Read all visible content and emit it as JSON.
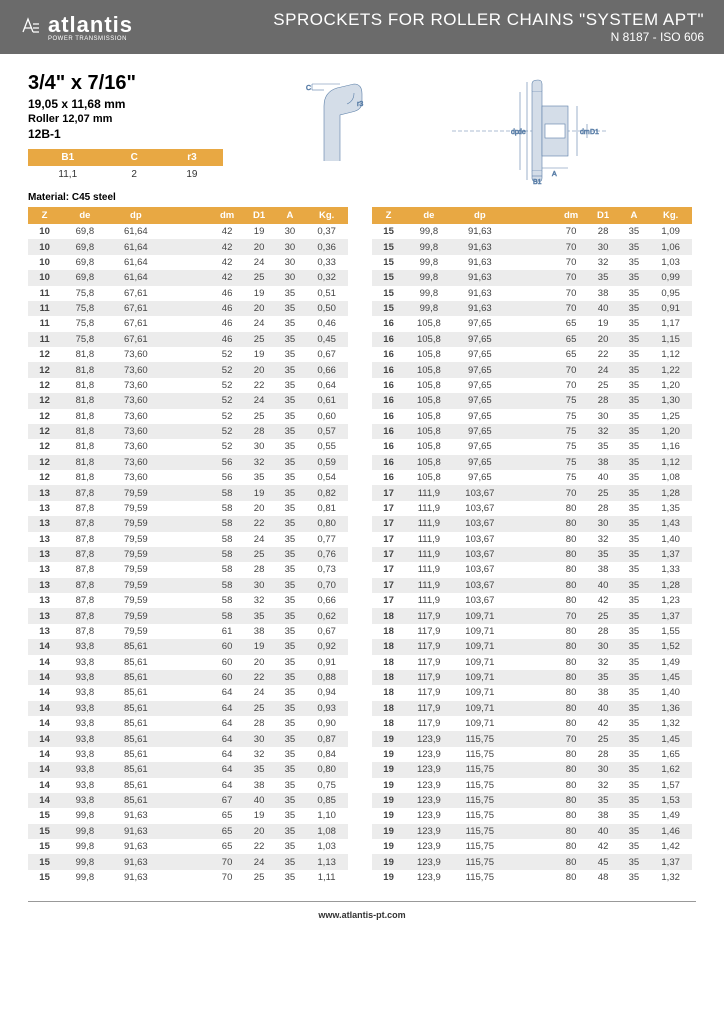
{
  "header": {
    "logo_text": "atlantis",
    "logo_sub": "POWER TRANSMISSION",
    "title": "SPROCKETS FOR ROLLER CHAINS \"SYSTEM APT\"",
    "subtitle": "N 8187 - ISO 606"
  },
  "spec": {
    "main": "3/4\" x 7/16\"",
    "sub": "19,05 x 11,68 mm",
    "roller": "Roller 12,07 mm",
    "code": "12B-1"
  },
  "small_table": {
    "headers": [
      "B1",
      "C",
      "r3"
    ],
    "row": [
      "11,1",
      "2",
      "19"
    ]
  },
  "material": "Material: C45 steel",
  "main_headers": [
    "Z",
    "de",
    "dp",
    "",
    "dm",
    "D1",
    "A",
    "Kg."
  ],
  "left_rows": [
    [
      "10",
      "69,8",
      "61,64",
      "",
      "42",
      "19",
      "30",
      "0,37"
    ],
    [
      "10",
      "69,8",
      "61,64",
      "",
      "42",
      "20",
      "30",
      "0,36"
    ],
    [
      "10",
      "69,8",
      "61,64",
      "",
      "42",
      "24",
      "30",
      "0,33"
    ],
    [
      "10",
      "69,8",
      "61,64",
      "",
      "42",
      "25",
      "30",
      "0,32"
    ],
    [
      "11",
      "75,8",
      "67,61",
      "",
      "46",
      "19",
      "35",
      "0,51"
    ],
    [
      "11",
      "75,8",
      "67,61",
      "",
      "46",
      "20",
      "35",
      "0,50"
    ],
    [
      "11",
      "75,8",
      "67,61",
      "",
      "46",
      "24",
      "35",
      "0,46"
    ],
    [
      "11",
      "75,8",
      "67,61",
      "",
      "46",
      "25",
      "35",
      "0,45"
    ],
    [
      "12",
      "81,8",
      "73,60",
      "",
      "52",
      "19",
      "35",
      "0,67"
    ],
    [
      "12",
      "81,8",
      "73,60",
      "",
      "52",
      "20",
      "35",
      "0,66"
    ],
    [
      "12",
      "81,8",
      "73,60",
      "",
      "52",
      "22",
      "35",
      "0,64"
    ],
    [
      "12",
      "81,8",
      "73,60",
      "",
      "52",
      "24",
      "35",
      "0,61"
    ],
    [
      "12",
      "81,8",
      "73,60",
      "",
      "52",
      "25",
      "35",
      "0,60"
    ],
    [
      "12",
      "81,8",
      "73,60",
      "",
      "52",
      "28",
      "35",
      "0,57"
    ],
    [
      "12",
      "81,8",
      "73,60",
      "",
      "52",
      "30",
      "35",
      "0,55"
    ],
    [
      "12",
      "81,8",
      "73,60",
      "",
      "56",
      "32",
      "35",
      "0,59"
    ],
    [
      "12",
      "81,8",
      "73,60",
      "",
      "56",
      "35",
      "35",
      "0,54"
    ],
    [
      "13",
      "87,8",
      "79,59",
      "",
      "58",
      "19",
      "35",
      "0,82"
    ],
    [
      "13",
      "87,8",
      "79,59",
      "",
      "58",
      "20",
      "35",
      "0,81"
    ],
    [
      "13",
      "87,8",
      "79,59",
      "",
      "58",
      "22",
      "35",
      "0,80"
    ],
    [
      "13",
      "87,8",
      "79,59",
      "",
      "58",
      "24",
      "35",
      "0,77"
    ],
    [
      "13",
      "87,8",
      "79,59",
      "",
      "58",
      "25",
      "35",
      "0,76"
    ],
    [
      "13",
      "87,8",
      "79,59",
      "",
      "58",
      "28",
      "35",
      "0,73"
    ],
    [
      "13",
      "87,8",
      "79,59",
      "",
      "58",
      "30",
      "35",
      "0,70"
    ],
    [
      "13",
      "87,8",
      "79,59",
      "",
      "58",
      "32",
      "35",
      "0,66"
    ],
    [
      "13",
      "87,8",
      "79,59",
      "",
      "58",
      "35",
      "35",
      "0,62"
    ],
    [
      "13",
      "87,8",
      "79,59",
      "",
      "61",
      "38",
      "35",
      "0,67"
    ],
    [
      "14",
      "93,8",
      "85,61",
      "",
      "60",
      "19",
      "35",
      "0,92"
    ],
    [
      "14",
      "93,8",
      "85,61",
      "",
      "60",
      "20",
      "35",
      "0,91"
    ],
    [
      "14",
      "93,8",
      "85,61",
      "",
      "60",
      "22",
      "35",
      "0,88"
    ],
    [
      "14",
      "93,8",
      "85,61",
      "",
      "64",
      "24",
      "35",
      "0,94"
    ],
    [
      "14",
      "93,8",
      "85,61",
      "",
      "64",
      "25",
      "35",
      "0,93"
    ],
    [
      "14",
      "93,8",
      "85,61",
      "",
      "64",
      "28",
      "35",
      "0,90"
    ],
    [
      "14",
      "93,8",
      "85,61",
      "",
      "64",
      "30",
      "35",
      "0,87"
    ],
    [
      "14",
      "93,8",
      "85,61",
      "",
      "64",
      "32",
      "35",
      "0,84"
    ],
    [
      "14",
      "93,8",
      "85,61",
      "",
      "64",
      "35",
      "35",
      "0,80"
    ],
    [
      "14",
      "93,8",
      "85,61",
      "",
      "64",
      "38",
      "35",
      "0,75"
    ],
    [
      "14",
      "93,8",
      "85,61",
      "",
      "67",
      "40",
      "35",
      "0,85"
    ],
    [
      "15",
      "99,8",
      "91,63",
      "",
      "65",
      "19",
      "35",
      "1,10"
    ],
    [
      "15",
      "99,8",
      "91,63",
      "",
      "65",
      "20",
      "35",
      "1,08"
    ],
    [
      "15",
      "99,8",
      "91,63",
      "",
      "65",
      "22",
      "35",
      "1,03"
    ],
    [
      "15",
      "99,8",
      "91,63",
      "",
      "70",
      "24",
      "35",
      "1,13"
    ],
    [
      "15",
      "99,8",
      "91,63",
      "",
      "70",
      "25",
      "35",
      "1,11"
    ]
  ],
  "right_rows": [
    [
      "15",
      "99,8",
      "91,63",
      "",
      "70",
      "28",
      "35",
      "1,09"
    ],
    [
      "15",
      "99,8",
      "91,63",
      "",
      "70",
      "30",
      "35",
      "1,06"
    ],
    [
      "15",
      "99,8",
      "91,63",
      "",
      "70",
      "32",
      "35",
      "1,03"
    ],
    [
      "15",
      "99,8",
      "91,63",
      "",
      "70",
      "35",
      "35",
      "0,99"
    ],
    [
      "15",
      "99,8",
      "91,63",
      "",
      "70",
      "38",
      "35",
      "0,95"
    ],
    [
      "15",
      "99,8",
      "91,63",
      "",
      "70",
      "40",
      "35",
      "0,91"
    ],
    [
      "16",
      "105,8",
      "97,65",
      "",
      "65",
      "19",
      "35",
      "1,17"
    ],
    [
      "16",
      "105,8",
      "97,65",
      "",
      "65",
      "20",
      "35",
      "1,15"
    ],
    [
      "16",
      "105,8",
      "97,65",
      "",
      "65",
      "22",
      "35",
      "1,12"
    ],
    [
      "16",
      "105,8",
      "97,65",
      "",
      "70",
      "24",
      "35",
      "1,22"
    ],
    [
      "16",
      "105,8",
      "97,65",
      "",
      "70",
      "25",
      "35",
      "1,20"
    ],
    [
      "16",
      "105,8",
      "97,65",
      "",
      "75",
      "28",
      "35",
      "1,30"
    ],
    [
      "16",
      "105,8",
      "97,65",
      "",
      "75",
      "30",
      "35",
      "1,25"
    ],
    [
      "16",
      "105,8",
      "97,65",
      "",
      "75",
      "32",
      "35",
      "1,20"
    ],
    [
      "16",
      "105,8",
      "97,65",
      "",
      "75",
      "35",
      "35",
      "1,16"
    ],
    [
      "16",
      "105,8",
      "97,65",
      "",
      "75",
      "38",
      "35",
      "1,12"
    ],
    [
      "16",
      "105,8",
      "97,65",
      "",
      "75",
      "40",
      "35",
      "1,08"
    ],
    [
      "17",
      "111,9",
      "103,67",
      "",
      "70",
      "25",
      "35",
      "1,28"
    ],
    [
      "17",
      "111,9",
      "103,67",
      "",
      "80",
      "28",
      "35",
      "1,35"
    ],
    [
      "17",
      "111,9",
      "103,67",
      "",
      "80",
      "30",
      "35",
      "1,43"
    ],
    [
      "17",
      "111,9",
      "103,67",
      "",
      "80",
      "32",
      "35",
      "1,40"
    ],
    [
      "17",
      "111,9",
      "103,67",
      "",
      "80",
      "35",
      "35",
      "1,37"
    ],
    [
      "17",
      "111,9",
      "103,67",
      "",
      "80",
      "38",
      "35",
      "1,33"
    ],
    [
      "17",
      "111,9",
      "103,67",
      "",
      "80",
      "40",
      "35",
      "1,28"
    ],
    [
      "17",
      "111,9",
      "103,67",
      "",
      "80",
      "42",
      "35",
      "1,23"
    ],
    [
      "18",
      "117,9",
      "109,71",
      "",
      "70",
      "25",
      "35",
      "1,37"
    ],
    [
      "18",
      "117,9",
      "109,71",
      "",
      "80",
      "28",
      "35",
      "1,55"
    ],
    [
      "18",
      "117,9",
      "109,71",
      "",
      "80",
      "30",
      "35",
      "1,52"
    ],
    [
      "18",
      "117,9",
      "109,71",
      "",
      "80",
      "32",
      "35",
      "1,49"
    ],
    [
      "18",
      "117,9",
      "109,71",
      "",
      "80",
      "35",
      "35",
      "1,45"
    ],
    [
      "18",
      "117,9",
      "109,71",
      "",
      "80",
      "38",
      "35",
      "1,40"
    ],
    [
      "18",
      "117,9",
      "109,71",
      "",
      "80",
      "40",
      "35",
      "1,36"
    ],
    [
      "18",
      "117,9",
      "109,71",
      "",
      "80",
      "42",
      "35",
      "1,32"
    ],
    [
      "19",
      "123,9",
      "115,75",
      "",
      "70",
      "25",
      "35",
      "1,45"
    ],
    [
      "19",
      "123,9",
      "115,75",
      "",
      "80",
      "28",
      "35",
      "1,65"
    ],
    [
      "19",
      "123,9",
      "115,75",
      "",
      "80",
      "30",
      "35",
      "1,62"
    ],
    [
      "19",
      "123,9",
      "115,75",
      "",
      "80",
      "32",
      "35",
      "1,57"
    ],
    [
      "19",
      "123,9",
      "115,75",
      "",
      "80",
      "35",
      "35",
      "1,53"
    ],
    [
      "19",
      "123,9",
      "115,75",
      "",
      "80",
      "38",
      "35",
      "1,49"
    ],
    [
      "19",
      "123,9",
      "115,75",
      "",
      "80",
      "40",
      "35",
      "1,46"
    ],
    [
      "19",
      "123,9",
      "115,75",
      "",
      "80",
      "42",
      "35",
      "1,42"
    ],
    [
      "19",
      "123,9",
      "115,75",
      "",
      "80",
      "45",
      "35",
      "1,37"
    ],
    [
      "19",
      "123,9",
      "115,75",
      "",
      "80",
      "48",
      "35",
      "1,32"
    ]
  ],
  "footer": "www.atlantis-pt.com",
  "colors": {
    "header_bg": "#6b6b6b",
    "accent": "#e8a843",
    "alt_row": "#ececec"
  }
}
